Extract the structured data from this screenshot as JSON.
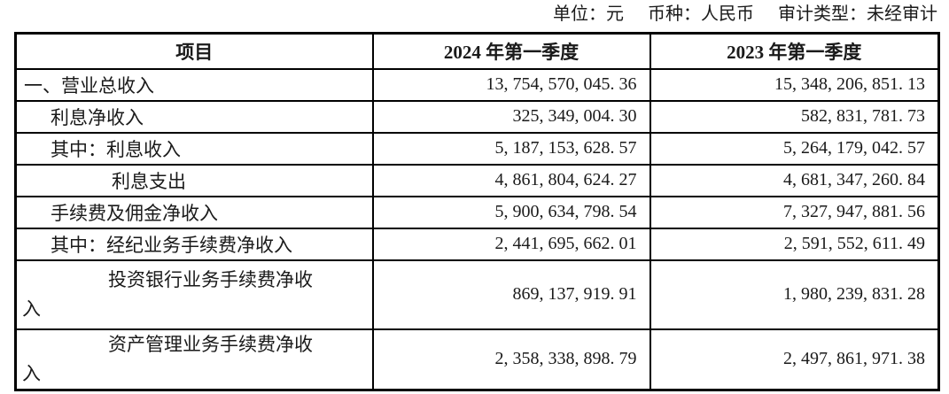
{
  "meta_note": {
    "unit": "单位：元",
    "currency": "币种：人民币",
    "audit_type": "审计类型：未经审计"
  },
  "table": {
    "headers": [
      "项目",
      "2024 年第一季度",
      "2023 年第一季度"
    ],
    "rows": [
      {
        "label": "一、营业总收入",
        "q1_2024": "13, 754, 570, 045. 36",
        "q1_2023": "15, 348, 206, 851. 13"
      },
      {
        "label": "利息净收入",
        "q1_2024": "325, 349, 004. 30",
        "q1_2023": "582, 831, 781. 73"
      },
      {
        "label": "其中：利息收入",
        "q1_2024": "5, 187, 153, 628. 57",
        "q1_2023": "5, 264, 179, 042. 57"
      },
      {
        "label": "利息支出",
        "q1_2024": "4, 861, 804, 624. 27",
        "q1_2023": "4, 681, 347, 260. 84"
      },
      {
        "label": "手续费及佣金净收入",
        "q1_2024": "5, 900, 634, 798. 54",
        "q1_2023": "7, 327, 947, 881. 56"
      },
      {
        "label": "其中：经纪业务手续费净收入",
        "q1_2024": "2, 441, 695, 662. 01",
        "q1_2023": "2, 591, 552, 611. 49"
      },
      {
        "label": "投资银行业务手续费净收\n入",
        "q1_2024": "869, 137, 919. 91",
        "q1_2023": "1, 980, 239, 831. 28"
      },
      {
        "label": "资产管理业务手续费净收\n入",
        "q1_2024": "2, 358, 338, 898. 79",
        "q1_2023": "2, 497, 861, 971. 38"
      }
    ]
  }
}
